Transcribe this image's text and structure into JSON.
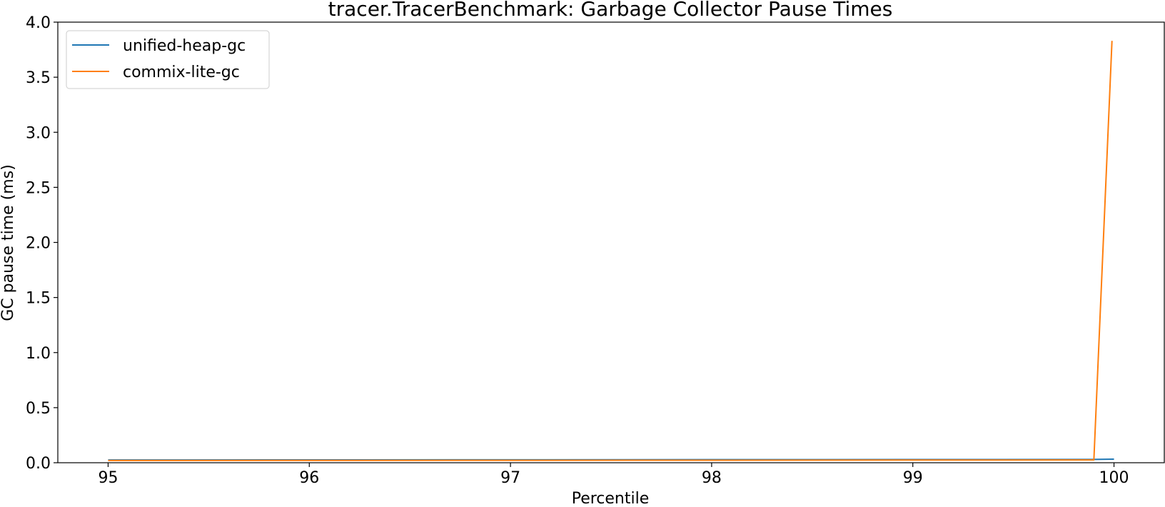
{
  "chart_data": {
    "type": "line",
    "title": "tracer.TracerBenchmark: Garbage Collector Pause Times",
    "xlabel": "Percentile",
    "ylabel": "GC pause time (ms)",
    "xlim": [
      94.75,
      100.25
    ],
    "ylim": [
      0.0,
      4.0
    ],
    "xticks": [
      95,
      96,
      97,
      98,
      99,
      100
    ],
    "xtick_labels": [
      "95",
      "96",
      "97",
      "98",
      "99",
      "100"
    ],
    "yticks": [
      0.0,
      0.5,
      1.0,
      1.5,
      2.0,
      2.5,
      3.0,
      3.5,
      4.0
    ],
    "ytick_labels": [
      "0.0",
      "0.5",
      "1.0",
      "1.5",
      "2.0",
      "2.5",
      "3.0",
      "3.5",
      "4.0"
    ],
    "grid": false,
    "legend_position": "top-left",
    "series": [
      {
        "name": "unified-heap-gc",
        "color": "#1f77b4",
        "x": [
          95,
          96,
          97,
          98,
          99,
          99.9,
          100
        ],
        "y": [
          0.025,
          0.026,
          0.027,
          0.028,
          0.029,
          0.03,
          0.032
        ]
      },
      {
        "name": "commix-lite-gc",
        "color": "#ff7f0e",
        "x": [
          95,
          96,
          97,
          98,
          99,
          99.9,
          99.99
        ],
        "y": [
          0.02,
          0.021,
          0.022,
          0.023,
          0.024,
          0.025,
          3.83
        ]
      }
    ]
  }
}
